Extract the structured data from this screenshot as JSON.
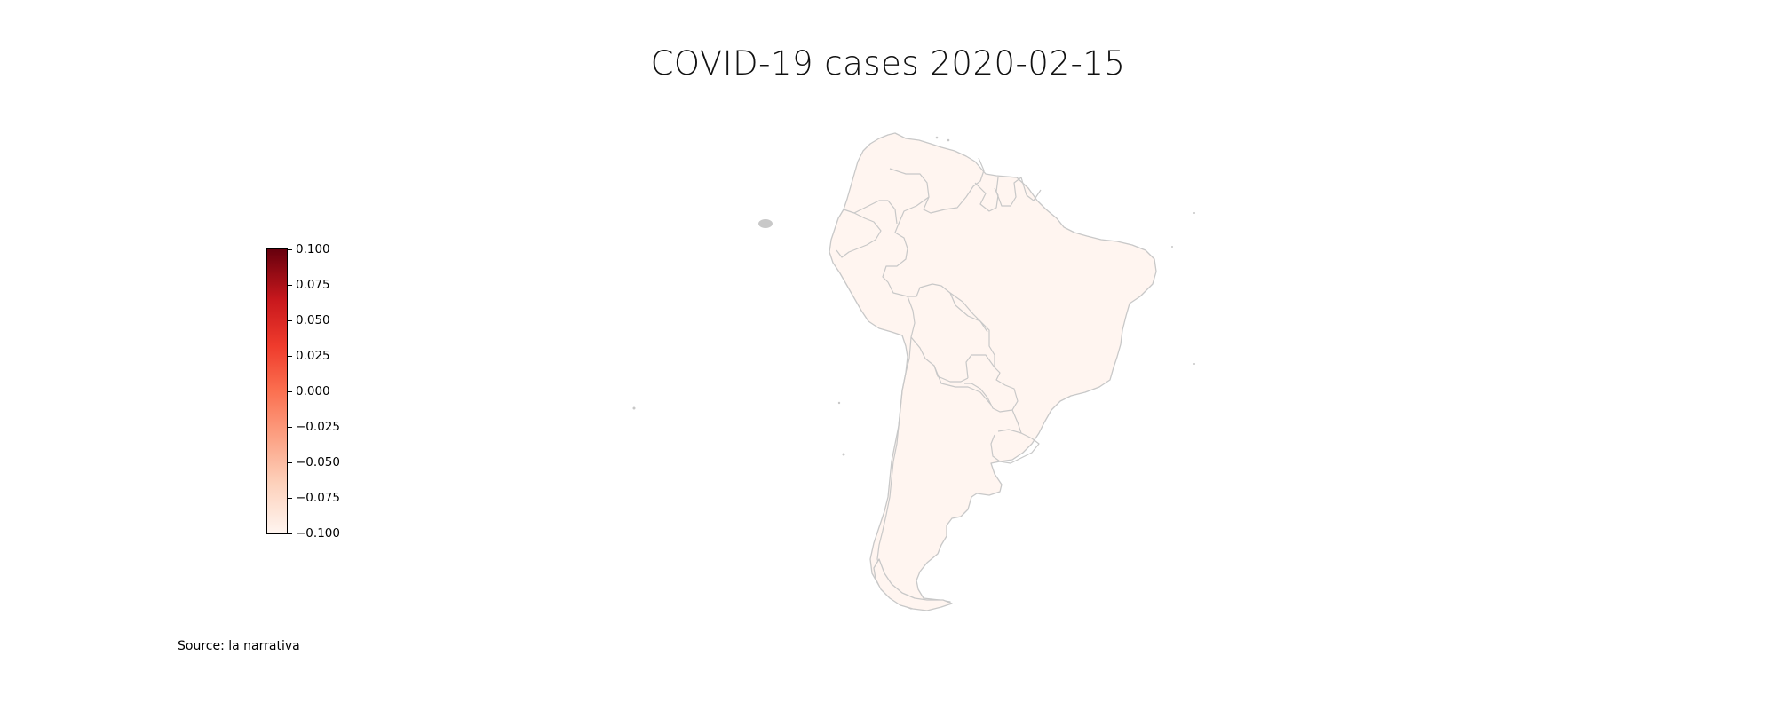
{
  "title": "COVID-19 cases 2020-02-15",
  "source": "Source: la narrativa",
  "colorbar": {
    "colormap": "Reds",
    "min": -0.1,
    "max": 0.1,
    "ticks": [
      {
        "value": 0.1,
        "label": "0.100"
      },
      {
        "value": 0.075,
        "label": "0.075"
      },
      {
        "value": 0.05,
        "label": "0.050"
      },
      {
        "value": 0.025,
        "label": "0.025"
      },
      {
        "value": 0.0,
        "label": "0.000"
      },
      {
        "value": -0.025,
        "label": "−0.025"
      },
      {
        "value": -0.05,
        "label": "−0.050"
      },
      {
        "value": -0.075,
        "label": "−0.075"
      },
      {
        "value": -0.1,
        "label": "−0.100"
      }
    ]
  },
  "map": {
    "region": "South America",
    "fill_color": "#fff5f0",
    "border_color": "#c8c8c8",
    "all_values": 0
  }
}
